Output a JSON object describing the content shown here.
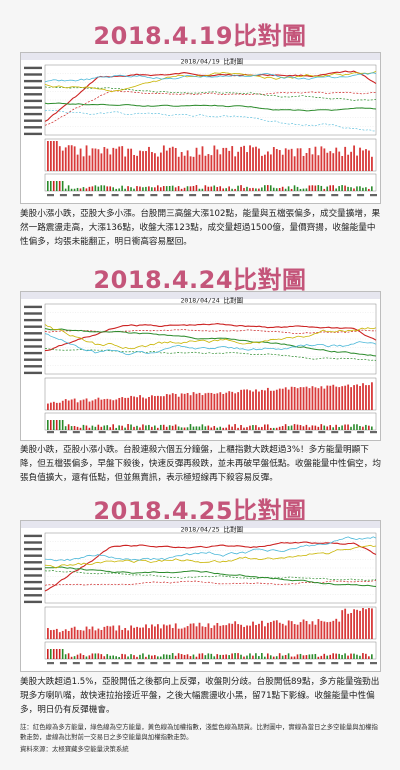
{
  "sections": [
    {
      "title": "2018.4.19比對圖",
      "chart_header": "2018/04/19",
      "chart_header_label": "比對圖",
      "description": "美股小漲小跌，亞股大多小漲。台股開三高盤大漲102點，能量與五檔張偏多，成交量擴增，果然一路震盪走高，大漲136點，收盤大漲123點，成交量超過1500億，量價齊揚，收盤能量中 性偏多，均張未能翻正，明日衝高容易壓回。"
    },
    {
      "title": "2018.4.24比對圖",
      "chart_header": "2018/04/24",
      "chart_header_label": "比對圖",
      "description": "美股小跌，亞股小漲小跌。台股連殺六個五分鐘盤，上櫃指數大跌超過3%！多方能量明顯下降，但五檔張偏多，早盤下殺後，快速反彈再殺跌，並未再破早盤低點。收盤能量中性偏空，均張負值擴大，還有低點，但並無賣訊，表示極短線再下殺容易反彈。"
    },
    {
      "title": "2018.4.25比對圖",
      "chart_header": "2018/04/25",
      "chart_header_label": "比對圖",
      "description": "美股大跌超過1.5%，亞股開低之後都向上反彈，收盤則分歧。台股開低89點，多方能量強勁出現多方喇叭嘴，故快速拉抬接近平盤，之後大幅震盪收小黑，留71點下影線。收盤能量中性偏 多，明日仍有反彈機會。"
    }
  ],
  "footnote": "註：紅色線為多方能量，綠色線為空方能量，黃色線為加權指數，淺藍色線為期貨。比對圖中，實線為當日之多空能量與加權指數走勢，虛線為比對前一交易日之多空能量與加權指數走勢。",
  "source": "資料來源：太極寶藏多空能量決策系統",
  "colors": {
    "title": "#c4557a",
    "bull": "#cc2222",
    "bear": "#2a8a2a",
    "index": "#c8b400",
    "futures": "#4ab7d8",
    "volume": "#d83a3a"
  }
}
